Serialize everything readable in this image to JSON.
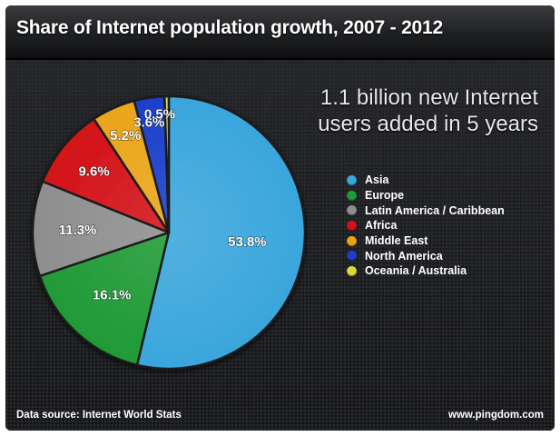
{
  "header": {
    "title": "Share of Internet population growth, 2007 - 2012"
  },
  "headline": {
    "line1": "1.1 billion new Internet",
    "line2": "users added in 5 years"
  },
  "footer": {
    "source": "Data source: Internet World Stats",
    "site": "www.pingdom.com"
  },
  "chart_data": {
    "type": "pie",
    "title": "Share of Internet population growth, 2007 - 2012",
    "legend_position": "right",
    "slices": [
      {
        "name": "Asia",
        "value": 53.8,
        "label": "53.8%",
        "color": "#3aa6dc"
      },
      {
        "name": "Europe",
        "value": 16.1,
        "label": "16.1%",
        "color": "#1f9a36"
      },
      {
        "name": "Latin America / Caribbean",
        "value": 11.3,
        "label": "11.3%",
        "color": "#8e8e8e"
      },
      {
        "name": "Africa",
        "value": 9.6,
        "label": "9.6%",
        "color": "#d31218"
      },
      {
        "name": "Middle East",
        "value": 5.2,
        "label": "5.2%",
        "color": "#eaa51a"
      },
      {
        "name": "North America",
        "value": 3.6,
        "label": "3.6%",
        "color": "#1a3fcb"
      },
      {
        "name": "Oceania / Australia",
        "value": 0.5,
        "label": "0.5%",
        "color": "#d6d83c"
      }
    ]
  }
}
